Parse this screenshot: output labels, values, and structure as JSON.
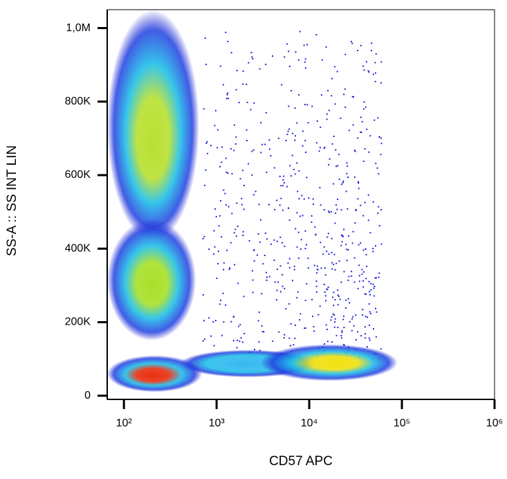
{
  "chart_data": {
    "type": "density",
    "x_label": "CD57 APC",
    "y_label": "SS-A :: SS INT LIN",
    "x_log": true,
    "xlim": [
      66,
      1000000
    ],
    "ylim": [
      -10000,
      1050000
    ],
    "xticks": [
      {
        "value": 100,
        "label": "10²"
      },
      {
        "value": 1000,
        "label": "10³"
      },
      {
        "value": 10000,
        "label": "10⁴"
      },
      {
        "value": 100000,
        "label": "10⁵"
      },
      {
        "value": 1000000,
        "label": "10⁶"
      }
    ],
    "yticks": [
      0,
      {
        "value": 200000,
        "label": "200K"
      },
      {
        "value": 400000,
        "label": "400K"
      },
      {
        "value": 600000,
        "label": "600K"
      },
      {
        "value": 800000,
        "label": "800K"
      },
      {
        "value": 1000000,
        "label": "1,0M"
      }
    ],
    "populations": [
      {
        "x": 2000,
        "y": 85000,
        "xrange": [
          400,
          12000
        ],
        "yrange": [
          50000,
          125000
        ],
        "color": "#30b8f0"
      },
      {
        "x": 200,
        "y": 680000,
        "xrange": [
          66,
          650
        ],
        "yrange": [
          420000,
          1050000
        ],
        "color": "#b8e030"
      },
      {
        "x": 200,
        "y": 300000,
        "xrange": [
          66,
          600
        ],
        "yrange": [
          150000,
          480000
        ],
        "color": "#a8e028"
      },
      {
        "x": 200,
        "y": 45000,
        "xrange": [
          66,
          700
        ],
        "yrange": [
          10000,
          110000
        ],
        "color": "#e83010"
      },
      {
        "x": 20000,
        "y": 85000,
        "xrange": [
          3000,
          90000
        ],
        "yrange": [
          40000,
          140000
        ],
        "color": "#f0e010"
      }
    ],
    "sparse_events": {
      "xrange": [
        700,
        60000
      ],
      "yrange": [
        100000,
        1000000
      ],
      "color": "#2020d8"
    }
  }
}
